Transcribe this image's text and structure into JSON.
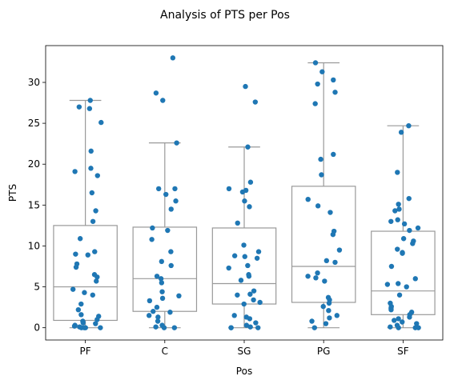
{
  "chart_data": {
    "type": "box",
    "title": "Analysis of PTS per Pos",
    "xlabel": "Pos",
    "ylabel": "PTS",
    "categories": [
      "PF",
      "C",
      "SG",
      "PG",
      "SF"
    ],
    "ylim": [
      -1.5,
      34.5
    ],
    "yticks": [
      0,
      5,
      10,
      15,
      20,
      25,
      30
    ],
    "grid": false,
    "box_color": "#999999",
    "point_color": "#1f77b4",
    "boxes": [
      {
        "category": "PF",
        "min": 0.0,
        "q1": 0.9,
        "median": 5.0,
        "q3": 12.5,
        "max": 27.8
      },
      {
        "category": "C",
        "min": 0.0,
        "q1": 2.0,
        "median": 6.0,
        "q3": 12.3,
        "max": 22.6
      },
      {
        "category": "SG",
        "min": 0.0,
        "q1": 2.9,
        "median": 5.4,
        "q3": 12.2,
        "max": 22.1
      },
      {
        "category": "PG",
        "min": 0.0,
        "q1": 3.1,
        "median": 7.5,
        "q3": 17.3,
        "max": 32.4
      },
      {
        "category": "SF",
        "min": 0.0,
        "q1": 1.6,
        "median": 4.5,
        "q3": 11.8,
        "max": 24.7
      }
    ],
    "points": [
      {
        "category": "PF",
        "values": [
          27.8,
          27.0,
          26.8,
          25.1,
          21.6,
          19.5,
          19.1,
          18.6,
          16.5,
          14.3,
          13.0,
          10.9,
          9.3,
          9.0,
          8.9,
          7.8,
          7.4,
          6.5,
          6.2,
          5.7,
          4.7,
          4.3,
          4.0,
          2.9,
          2.2,
          1.6,
          1.4,
          1.0,
          0.8,
          0.6,
          0.5,
          0.3,
          0.2,
          0.1,
          0.0,
          0.0,
          0.0,
          0.0
        ]
      },
      {
        "category": "C",
        "values": [
          33.0,
          28.7,
          27.8,
          22.6,
          17.0,
          17.0,
          16.3,
          15.5,
          14.5,
          12.2,
          11.9,
          10.8,
          9.3,
          8.1,
          7.6,
          6.3,
          6.0,
          5.5,
          4.4,
          3.9,
          3.6,
          3.3,
          2.5,
          2.0,
          1.9,
          1.5,
          1.3,
          0.8,
          0.3,
          0.1,
          0.0,
          0.0
        ]
      },
      {
        "category": "SG",
        "values": [
          29.5,
          27.6,
          22.1,
          17.8,
          17.0,
          16.8,
          16.6,
          15.5,
          14.8,
          12.8,
          10.1,
          9.3,
          8.8,
          8.7,
          8.5,
          7.6,
          7.3,
          6.5,
          6.3,
          5.8,
          4.5,
          4.1,
          4.0,
          3.4,
          3.1,
          2.9,
          1.5,
          1.3,
          1.1,
          0.6,
          0.3,
          0.1,
          0.0,
          0.0,
          0.0
        ]
      },
      {
        "category": "PG",
        "values": [
          32.4,
          31.3,
          30.3,
          29.8,
          28.8,
          27.4,
          21.2,
          20.6,
          18.7,
          15.7,
          14.9,
          14.1,
          11.8,
          11.4,
          9.5,
          8.2,
          8.0,
          6.7,
          6.3,
          6.1,
          5.7,
          3.7,
          3.4,
          3.0,
          2.6,
          2.1,
          1.5,
          1.2,
          0.8,
          0.5,
          0.0
        ]
      },
      {
        "category": "SF",
        "values": [
          24.7,
          23.9,
          19.0,
          15.8,
          15.1,
          14.5,
          14.3,
          13.2,
          13.0,
          12.7,
          12.2,
          11.9,
          10.9,
          10.6,
          10.3,
          9.6,
          9.2,
          9.1,
          7.5,
          6.0,
          5.4,
          5.3,
          5.0,
          4.0,
          3.0,
          2.6,
          2.4,
          2.2,
          1.9,
          1.6,
          1.3,
          1.1,
          0.9,
          0.7,
          0.5,
          0.3,
          0.1,
          0.0,
          0.0,
          0.0
        ]
      }
    ]
  }
}
